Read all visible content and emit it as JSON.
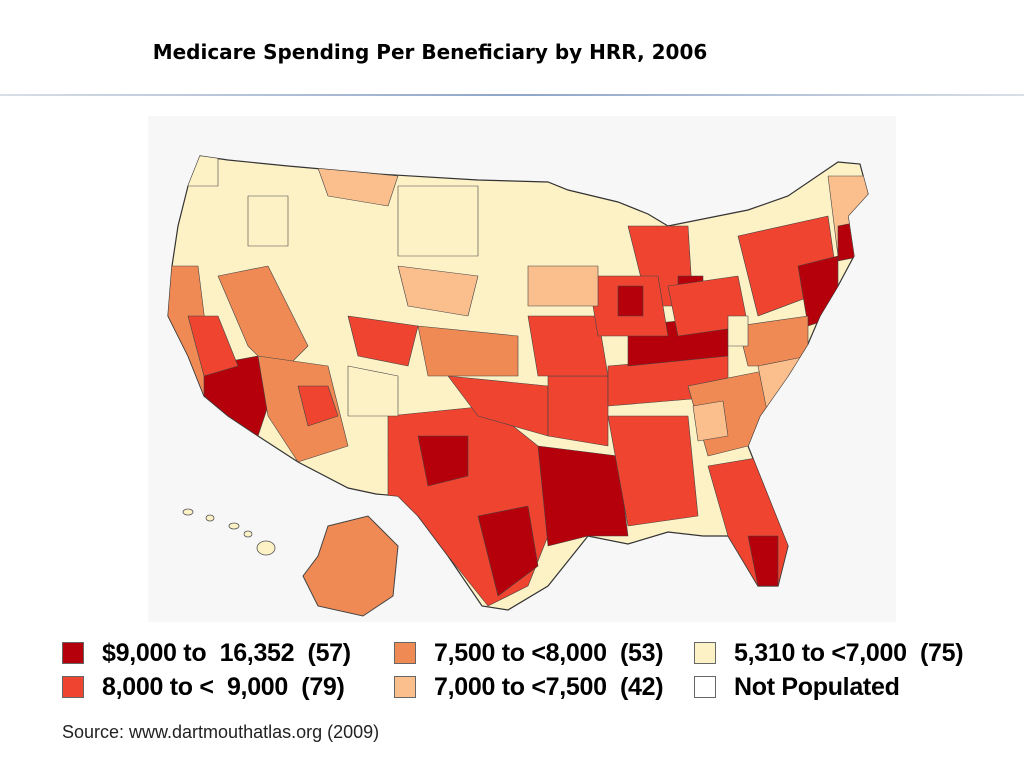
{
  "title": "Medicare Spending Per Beneficiary by HRR, 2006",
  "legend": [
    {
      "label": "$9,000 to  16,352  (57)",
      "color": "#b5000b"
    },
    {
      "label": "8,000 to <  9,000  (79)",
      "color": "#ef4430"
    },
    {
      "label": "7,500 to <8,000  (53)",
      "color": "#f08a55"
    },
    {
      "label": "7,000 to <7,500  (42)",
      "color": "#fbbf8e"
    },
    {
      "label": "5,310 to <7,000  (75)",
      "color": "#fdf1c6"
    },
    {
      "label": "Not Populated",
      "color": "#ffffff"
    }
  ],
  "source": "Source:  www.dartmouthatlas.org (2009)",
  "colors": {
    "map_background": "#f7f7f7",
    "border_lines": "#333333"
  }
}
